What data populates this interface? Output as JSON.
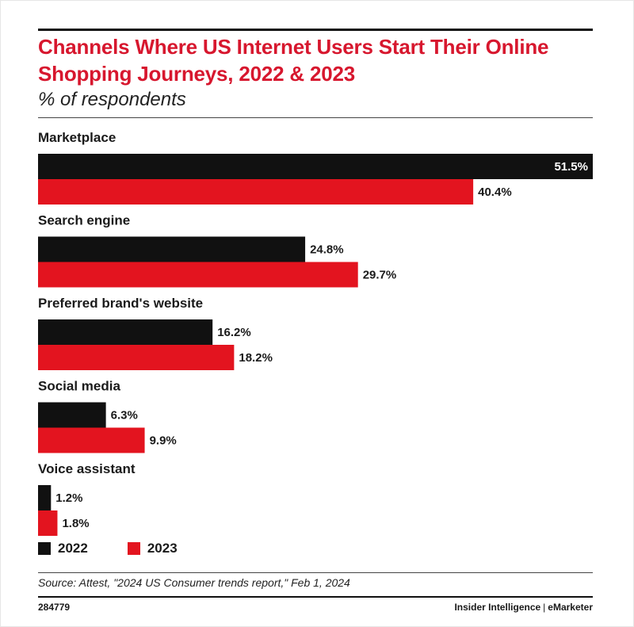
{
  "header": {
    "title": "Channels Where US Internet Users Start Their Online Shopping Journeys, 2022 & 2023",
    "subtitle": "% of respondents"
  },
  "chart_data": {
    "type": "bar",
    "orientation": "horizontal",
    "title": "Channels Where US Internet Users Start Their Online Shopping Journeys, 2022 & 2023",
    "subtitle": "% of respondents",
    "categories": [
      "Marketplace",
      "Search engine",
      "Preferred brand's website",
      "Social media",
      "Voice assistant"
    ],
    "series": [
      {
        "name": "2022",
        "color": "#111111",
        "values": [
          51.5,
          24.8,
          16.2,
          6.3,
          1.2
        ]
      },
      {
        "name": "2023",
        "color": "#e3141f",
        "values": [
          40.4,
          29.7,
          18.2,
          9.9,
          1.8
        ]
      }
    ],
    "value_suffix": "%",
    "xlim": [
      0,
      51.5
    ],
    "grid": false,
    "legend_position": "bottom-left"
  },
  "footer": {
    "source": "Source: Attest, \"2024 US Consumer trends report,\" Feb 1, 2024",
    "chart_id": "284779",
    "brand_left": "Insider Intelligence",
    "brand_sep": "|",
    "brand_right": "eMarketer"
  }
}
